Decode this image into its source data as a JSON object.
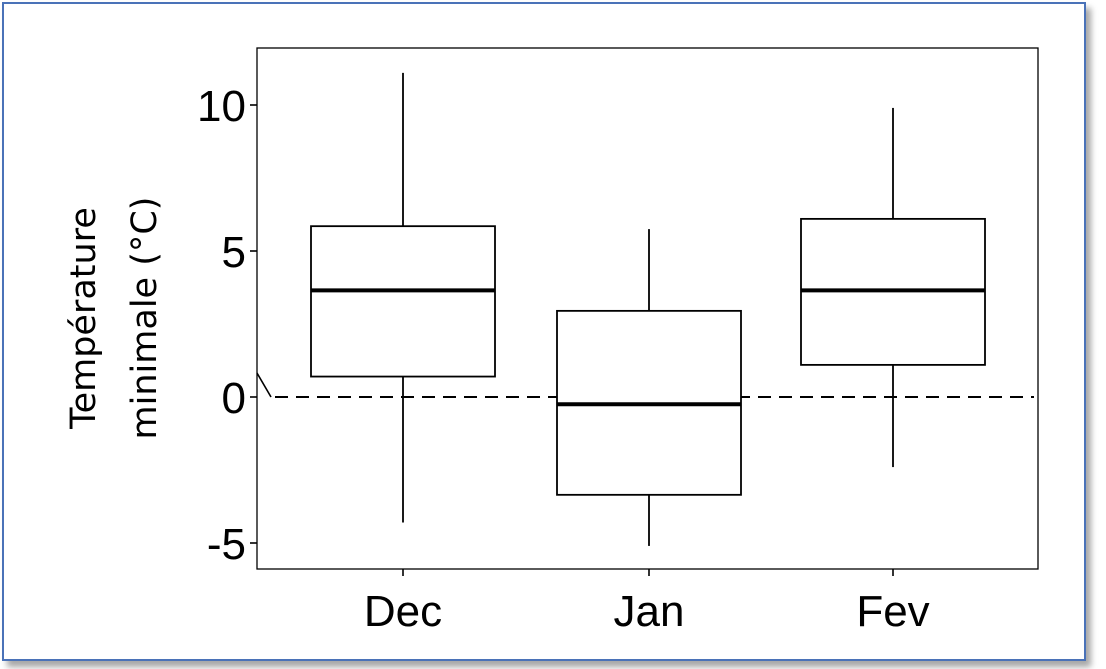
{
  "chart_data": {
    "type": "box",
    "ylabel_lines": [
      "Température",
      "minimale (°C)"
    ],
    "categories": [
      "Dec",
      "Jan",
      "Fev"
    ],
    "yticks": [
      -5,
      0,
      5,
      10
    ],
    "ytick_labels": [
      "-5",
      "0",
      "5",
      "10"
    ],
    "ylim": [
      -5.8,
      12
    ],
    "reference_line": {
      "y": 0,
      "style": "dashed"
    },
    "boxes": [
      {
        "name": "Dec",
        "whisker_low": -4.3,
        "q1": 0.7,
        "median": 3.65,
        "q3": 5.85,
        "whisker_high": 11.1
      },
      {
        "name": "Jan",
        "whisker_low": -5.1,
        "q1": -3.35,
        "median": -0.25,
        "q3": 2.95,
        "whisker_high": 5.75
      },
      {
        "name": "Fev",
        "whisker_low": -2.4,
        "q1": 1.1,
        "median": 3.65,
        "q3": 6.1,
        "whisker_high": 9.9
      }
    ],
    "grid": false,
    "colors": {
      "box_stroke": "#000000",
      "frame": "#4a72b8"
    }
  }
}
